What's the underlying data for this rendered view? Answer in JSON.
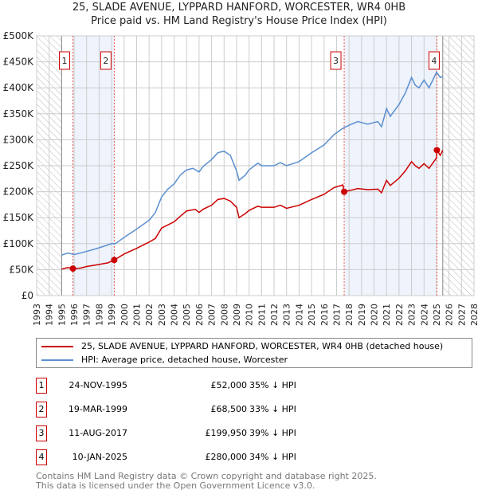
{
  "chart_data": {
    "type": "line",
    "title": "25, SLADE AVENUE, LYPPARD HANFORD, WORCESTER, WR4 0HB",
    "subtitle": "Price paid vs. HM Land Registry's House Price Index (HPI)",
    "xlim": [
      1993,
      2028
    ],
    "ylim": [
      0,
      500000
    ],
    "x_ticks": [
      "1993",
      "1994",
      "1995",
      "1996",
      "1997",
      "1998",
      "1999",
      "2000",
      "2001",
      "2002",
      "2003",
      "2004",
      "2005",
      "2006",
      "2007",
      "2008",
      "2009",
      "2010",
      "2011",
      "2012",
      "2013",
      "2014",
      "2015",
      "2016",
      "2017",
      "2018",
      "2019",
      "2020",
      "2021",
      "2022",
      "2023",
      "2024",
      "2025",
      "2026",
      "2027",
      "2028"
    ],
    "y_ticks": [
      {
        "v": 0,
        "label": "£0"
      },
      {
        "v": 50000,
        "label": "£50K"
      },
      {
        "v": 100000,
        "label": "£100K"
      },
      {
        "v": 150000,
        "label": "£150K"
      },
      {
        "v": 200000,
        "label": "£200K"
      },
      {
        "v": 250000,
        "label": "£250K"
      },
      {
        "v": 300000,
        "label": "£300K"
      },
      {
        "v": 350000,
        "label": "£350K"
      },
      {
        "v": 400000,
        "label": "£400K"
      },
      {
        "v": 450000,
        "label": "£450K"
      },
      {
        "v": 500000,
        "label": "£500K"
      }
    ],
    "grid": true,
    "hatched_ranges": [
      [
        1993,
        1995
      ],
      [
        2025.5,
        2028
      ]
    ],
    "shaded_ranges": [
      [
        1995.9,
        1999.2
      ],
      [
        2017.6,
        2025.03
      ]
    ],
    "series": [
      {
        "name": "25, SLADE AVENUE, LYPPARD HANFORD, WORCESTER, WR4 0HB (detached house)",
        "color": "#cc0000",
        "x": [
          1995,
          1995.5,
          1995.9,
          1996.5,
          1997,
          1998,
          1998.7,
          1999.2,
          2000,
          2001,
          2002,
          2002.5,
          2003,
          2004,
          2004.6,
          2005,
          2005.7,
          2006,
          2006.3,
          2007,
          2007.5,
          2008,
          2008.5,
          2009,
          2009.2,
          2009.7,
          2010,
          2010.7,
          2011,
          2012,
          2012.5,
          2013,
          2014,
          2015,
          2016,
          2016.8,
          2017.5,
          2017.6,
          2018,
          2018.7,
          2019.5,
          2020.3,
          2020.6,
          2021,
          2021.3,
          2022,
          2022.5,
          2023,
          2023.3,
          2023.6,
          2024,
          2024.4,
          2025,
          2025.03,
          2025.3,
          2025.5
        ],
        "y": [
          51000,
          54000,
          52000,
          53000,
          56000,
          60000,
          63000,
          68500,
          80000,
          91000,
          103000,
          110000,
          130000,
          142000,
          155000,
          163000,
          166000,
          160000,
          166000,
          174000,
          185000,
          187000,
          182000,
          170000,
          150000,
          158000,
          164000,
          172000,
          170000,
          170000,
          174000,
          168000,
          174000,
          185000,
          195000,
          208000,
          213000,
          199950,
          202000,
          206000,
          204000,
          205000,
          198000,
          222000,
          212000,
          226000,
          240000,
          258000,
          250000,
          245000,
          254000,
          245000,
          265000,
          280000,
          270000,
          280000
        ]
      },
      {
        "name": "HPI: Average price, detached house, Worcester",
        "color": "#5b8fd0",
        "x": [
          1995,
          1995.5,
          1996,
          1997,
          1998,
          1999,
          1999.3,
          2000,
          2001,
          2002,
          2002.5,
          2003,
          2003.5,
          2004,
          2004.5,
          2005,
          2005.5,
          2006,
          2006.3,
          2007,
          2007.5,
          2008,
          2008.5,
          2009,
          2009.2,
          2009.7,
          2010,
          2010.7,
          2011,
          2012,
          2012.5,
          2013,
          2014,
          2015,
          2016,
          2016.8,
          2017.5,
          2018,
          2018.7,
          2019.5,
          2020.3,
          2020.6,
          2021,
          2021.3,
          2022,
          2022.5,
          2023,
          2023.3,
          2023.6,
          2024,
          2024.4,
          2025,
          2025.3,
          2025.5
        ],
        "y": [
          78000,
          82000,
          79000,
          85000,
          92000,
          100000,
          100000,
          112000,
          128000,
          145000,
          160000,
          190000,
          205000,
          215000,
          232000,
          242000,
          245000,
          238000,
          248000,
          262000,
          275000,
          278000,
          270000,
          240000,
          222000,
          232000,
          242000,
          255000,
          250000,
          250000,
          256000,
          250000,
          258000,
          275000,
          290000,
          310000,
          322000,
          328000,
          335000,
          330000,
          335000,
          325000,
          360000,
          345000,
          368000,
          390000,
          420000,
          405000,
          400000,
          415000,
          400000,
          430000,
          420000,
          422000
        ]
      }
    ],
    "sales": [
      {
        "n": "1",
        "x": 1995.9,
        "y": 52000,
        "date": "24-NOV-1995",
        "price": "£52,000",
        "hpi": "35% ↓ HPI"
      },
      {
        "n": "2",
        "x": 1999.21,
        "y": 68500,
        "date": "19-MAR-1999",
        "price": "£68,500",
        "hpi": "33% ↓ HPI"
      },
      {
        "n": "3",
        "x": 2017.61,
        "y": 199950,
        "date": "11-AUG-2017",
        "price": "£199,950",
        "hpi": "39% ↓ HPI"
      },
      {
        "n": "4",
        "x": 2025.03,
        "y": 280000,
        "date": "10-JAN-2025",
        "price": "£280,000",
        "hpi": "34% ↓ HPI"
      }
    ]
  },
  "legend": {
    "property": "25, SLADE AVENUE, LYPPARD HANFORD, WORCESTER, WR4 0HB (detached house)",
    "hpi": "HPI: Average price, detached house, Worcester"
  },
  "footer": {
    "line1": "Contains HM Land Registry data © Crown copyright and database right 2025.",
    "line2": "This data is licensed under the Open Government Licence v3.0."
  }
}
